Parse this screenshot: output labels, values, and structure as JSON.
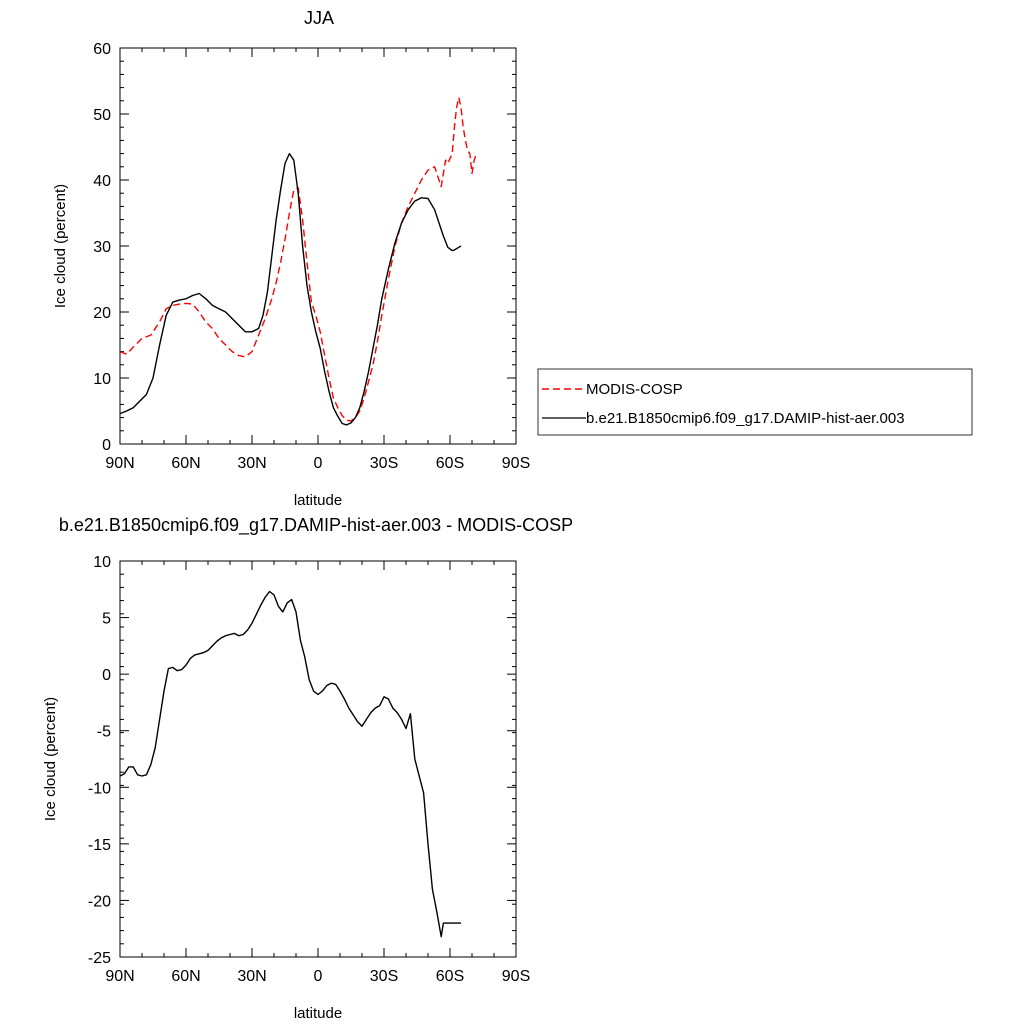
{
  "chart_data": [
    {
      "type": "line",
      "title": "JJA",
      "xlabel": "latitude",
      "ylabel": "Ice cloud (percent)",
      "xlim": [
        90,
        -90
      ],
      "ylim": [
        0,
        60
      ],
      "xticks": [
        {
          "value": 90,
          "label": "90N"
        },
        {
          "value": 60,
          "label": "60N"
        },
        {
          "value": 30,
          "label": "30N"
        },
        {
          "value": 0,
          "label": "0"
        },
        {
          "value": -30,
          "label": "30S"
        },
        {
          "value": -60,
          "label": "60S"
        },
        {
          "value": -90,
          "label": "90S"
        }
      ],
      "yticks": [
        0,
        10,
        20,
        30,
        40,
        50,
        60
      ],
      "grid": false,
      "legend_position": "right",
      "series": [
        {
          "name": "MODIS-COSP",
          "color": "#ff0000",
          "dash": "dashed",
          "x": [
            90,
            87,
            83,
            80,
            76,
            72,
            69,
            66,
            63,
            60,
            57,
            54,
            51,
            48,
            45,
            42,
            39,
            36,
            33,
            30,
            27,
            24,
            21,
            19,
            17,
            15,
            13,
            11,
            9,
            7,
            5,
            3,
            1,
            -1,
            -3,
            -5,
            -7,
            -9,
            -11,
            -13,
            -15,
            -17,
            -19,
            -21,
            -23,
            -25,
            -27,
            -29,
            -32,
            -35,
            -38,
            -41,
            -44,
            -47,
            -50,
            -53,
            -55,
            -56,
            -57,
            -58,
            -59,
            -61,
            -62,
            -63,
            -64,
            -65,
            -66,
            -67,
            -68,
            -69,
            -70,
            -71,
            -72
          ],
          "y": [
            14.0,
            13.6,
            15.0,
            16.0,
            16.5,
            18.5,
            20.5,
            21.0,
            21.2,
            21.3,
            21.2,
            20.0,
            18.5,
            17.5,
            16.0,
            15.0,
            14.0,
            13.4,
            13.2,
            14.0,
            16.5,
            19.0,
            22.0,
            24.5,
            27.5,
            31.0,
            35.0,
            38.5,
            38.8,
            34.0,
            27.5,
            21.5,
            19.5,
            17.0,
            13.5,
            10.0,
            7.0,
            5.5,
            4.3,
            3.6,
            3.5,
            4.0,
            5.0,
            7.0,
            9.5,
            12.0,
            15.5,
            19.5,
            25.0,
            30.0,
            33.5,
            36.0,
            38.0,
            40.0,
            41.5,
            42.0,
            40.0,
            39.0,
            41.0,
            43.0,
            42.5,
            44.0,
            48.0,
            51.0,
            52.5,
            51.0,
            48.0,
            46.0,
            44.5,
            44.0,
            41.0,
            43.0,
            44.0
          ]
        },
        {
          "name": "b.e21.B1850cmip6.f09_g17.DAMIP-hist-aer.003",
          "color": "#000000",
          "dash": "solid",
          "x": [
            90,
            87,
            84,
            81,
            78,
            75,
            72,
            69,
            66,
            63,
            60,
            57,
            54,
            51,
            48,
            45,
            42,
            39,
            36,
            33,
            30,
            27,
            25,
            23,
            21,
            19,
            17,
            15,
            13,
            11,
            9,
            7,
            5,
            3,
            1,
            -1,
            -3,
            -5,
            -7,
            -9,
            -11,
            -13,
            -15,
            -17,
            -19,
            -21,
            -23,
            -25,
            -27,
            -29,
            -32,
            -35,
            -38,
            -41,
            -44,
            -47,
            -50,
            -53,
            -55,
            -57,
            -59,
            -61,
            -62,
            -63,
            -64,
            -65
          ],
          "y": [
            4.6,
            5.0,
            5.5,
            6.5,
            7.5,
            10.0,
            15.0,
            19.5,
            21.5,
            21.8,
            22.0,
            22.5,
            22.8,
            22.0,
            21.0,
            20.5,
            20.0,
            19.0,
            18.0,
            17.0,
            17.0,
            17.5,
            19.5,
            23.0,
            28.5,
            34.0,
            38.5,
            42.5,
            44.0,
            43.0,
            38.0,
            30.0,
            24.0,
            20.0,
            17.0,
            14.5,
            11.0,
            8.0,
            5.5,
            4.2,
            3.1,
            2.9,
            3.2,
            4.0,
            5.5,
            8.0,
            11.0,
            14.5,
            18.0,
            22.0,
            26.5,
            30.5,
            33.5,
            35.5,
            36.8,
            37.3,
            37.2,
            35.5,
            33.5,
            31.5,
            29.8,
            29.3,
            29.4,
            29.6,
            29.8,
            30.0
          ]
        }
      ]
    },
    {
      "type": "line",
      "title": "b.e21.B1850cmip6.f09_g17.DAMIP-hist-aer.003 - MODIS-COSP",
      "xlabel": "latitude",
      "ylabel": "Ice cloud (percent)",
      "xlim": [
        90,
        -90
      ],
      "ylim": [
        -25,
        10
      ],
      "xticks": [
        {
          "value": 90,
          "label": "90N"
        },
        {
          "value": 60,
          "label": "60N"
        },
        {
          "value": 30,
          "label": "30N"
        },
        {
          "value": 0,
          "label": "0"
        },
        {
          "value": -30,
          "label": "30S"
        },
        {
          "value": -60,
          "label": "60S"
        },
        {
          "value": -90,
          "label": "90S"
        }
      ],
      "yticks": [
        10,
        5,
        0,
        -5,
        -10,
        -15,
        -20,
        -25
      ],
      "grid": false,
      "series": [
        {
          "color": "#000000",
          "dash": "solid",
          "x": [
            90,
            88,
            86,
            84,
            82,
            80,
            78,
            76,
            74,
            72,
            70,
            68,
            66,
            64,
            62,
            60,
            58,
            56,
            54,
            52,
            50,
            48,
            46,
            44,
            42,
            40,
            38,
            36,
            34,
            32,
            30,
            28,
            26,
            24,
            22,
            20,
            18,
            16,
            14,
            12,
            10,
            8,
            6,
            4,
            2,
            0,
            -2,
            -4,
            -6,
            -8,
            -10,
            -12,
            -14,
            -16,
            -18,
            -20,
            -22,
            -24,
            -26,
            -28,
            -30,
            -32,
            -34,
            -36,
            -38,
            -40,
            -42,
            -44,
            -46,
            -48,
            -50,
            -52,
            -54,
            -56,
            -57,
            -58,
            -59,
            -60,
            -61,
            -62,
            -63,
            -64,
            -65
          ],
          "y": [
            -9.0,
            -8.8,
            -8.2,
            -8.2,
            -8.9,
            -9.0,
            -8.9,
            -8.0,
            -6.5,
            -4.0,
            -1.5,
            0.5,
            0.6,
            0.3,
            0.4,
            0.8,
            1.4,
            1.7,
            1.8,
            1.9,
            2.1,
            2.5,
            2.9,
            3.2,
            3.4,
            3.5,
            3.6,
            3.4,
            3.5,
            3.9,
            4.5,
            5.3,
            6.1,
            6.8,
            7.3,
            7.0,
            6.0,
            5.5,
            6.3,
            6.6,
            5.5,
            3.0,
            1.5,
            -0.5,
            -1.5,
            -1.8,
            -1.5,
            -1.0,
            -0.8,
            -0.9,
            -1.5,
            -2.2,
            -3.0,
            -3.6,
            -4.2,
            -4.6,
            -4.0,
            -3.4,
            -3.0,
            -2.8,
            -2.0,
            -2.2,
            -3.0,
            -3.4,
            -4.0,
            -4.8,
            -3.5,
            -7.5,
            -9.0,
            -10.5,
            -15.0,
            -19.0,
            -21.0,
            -23.2,
            -22.0,
            -22.0,
            -22.0,
            -22.0,
            -22.0,
            -22.0,
            -22.0,
            -22.0,
            -22.0
          ]
        }
      ]
    }
  ]
}
